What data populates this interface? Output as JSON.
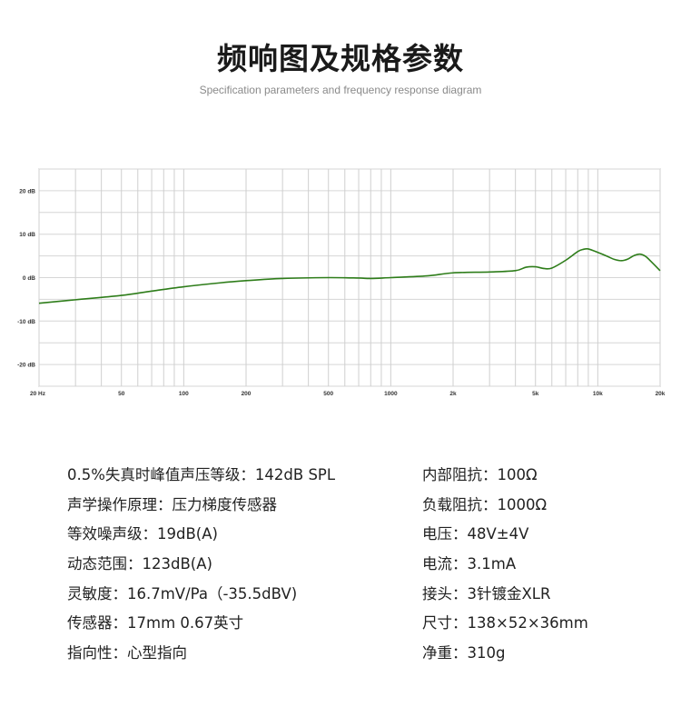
{
  "header": {
    "title": "频响图及规格参数",
    "subtitle": "Specification parameters and frequency response diagram"
  },
  "chart_data": {
    "type": "line",
    "title": "",
    "xlabel": "",
    "ylabel": "",
    "xscale": "log",
    "xlim": [
      20,
      20000
    ],
    "ylim": [
      -25,
      25
    ],
    "grid": true,
    "x_ticks": [
      {
        "value": 20,
        "label": "20 Hz"
      },
      {
        "value": 50,
        "label": "50"
      },
      {
        "value": 100,
        "label": "100"
      },
      {
        "value": 200,
        "label": "200"
      },
      {
        "value": 500,
        "label": "500"
      },
      {
        "value": 1000,
        "label": "1000"
      },
      {
        "value": 2000,
        "label": "2k"
      },
      {
        "value": 5000,
        "label": "5k"
      },
      {
        "value": 10000,
        "label": "10k"
      },
      {
        "value": 20000,
        "label": "20k"
      }
    ],
    "y_ticks": [
      {
        "value": 20,
        "label": "20 dB"
      },
      {
        "value": 10,
        "label": "10 dB"
      },
      {
        "value": 0,
        "label": "0 dB"
      },
      {
        "value": -10,
        "label": "-10 dB"
      },
      {
        "value": -20,
        "label": "-20 dB"
      }
    ],
    "series_color": "#2e7d1a",
    "series": [
      {
        "name": "",
        "x": [
          20,
          30,
          50,
          70,
          100,
          150,
          200,
          300,
          500,
          700,
          800,
          1000,
          1500,
          2000,
          3000,
          4000,
          4500,
          5000,
          5500,
          6000,
          7000,
          8000,
          8500,
          9000,
          10000,
          11000,
          12000,
          13000,
          14000,
          15000,
          16000,
          17000,
          18000,
          20000
        ],
        "y": [
          -5.9,
          -5.1,
          -4.1,
          -3.1,
          -2.1,
          -1.2,
          -0.7,
          -0.2,
          0.0,
          -0.1,
          -0.2,
          0.0,
          0.4,
          1.1,
          1.3,
          1.6,
          2.4,
          2.5,
          2.1,
          2.2,
          4.0,
          6.0,
          6.5,
          6.6,
          5.8,
          5.0,
          4.2,
          3.9,
          4.3,
          5.1,
          5.4,
          4.9,
          3.8,
          1.6
        ]
      }
    ]
  },
  "specs": {
    "left": [
      "0.5%失真时峰值声压等级：142dB SPL",
      "声学操作原理：压力梯度传感器",
      "等效噪声级：19dB(A)",
      "动态范围：123dB(A)",
      "灵敏度：16.7mV/Pa（-35.5dBV)",
      "传感器：17mm 0.67英寸",
      "指向性：心型指向"
    ],
    "right": [
      "内部阻抗：100Ω",
      "负载阻抗：1000Ω",
      "电压：48V±4V",
      "电流：3.1mA",
      "接头：3针镀金XLR",
      "尺寸：138×52×36mm",
      "净重：310g"
    ]
  }
}
